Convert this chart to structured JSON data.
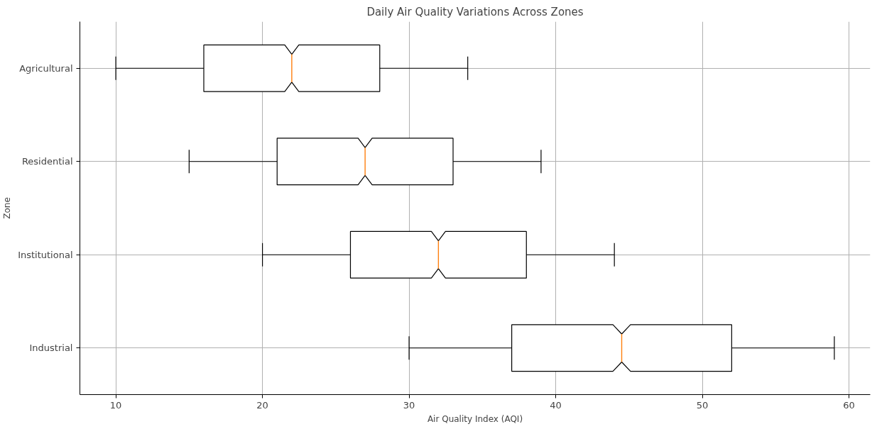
{
  "chart_data": {
    "type": "box",
    "orientation": "horizontal",
    "title": "Daily Air Quality Variations Across Zones",
    "xlabel": "Air Quality Index (AQI)",
    "ylabel": "Zone",
    "categories": [
      "Agricultural",
      "Residential",
      "Institutional",
      "Industrial"
    ],
    "boxes": [
      {
        "low": 10,
        "q1": 16,
        "median": 22,
        "q3": 28,
        "high": 34
      },
      {
        "low": 15,
        "q1": 21,
        "median": 27,
        "q3": 33,
        "high": 39
      },
      {
        "low": 20,
        "q1": 26,
        "median": 32,
        "q3": 38,
        "high": 44
      },
      {
        "low": 30,
        "q1": 37,
        "median": 44.5,
        "q3": 52,
        "high": 59
      }
    ],
    "xlim": [
      7.55,
      61.45
    ],
    "xticks": [
      10,
      20,
      30,
      40,
      50,
      60
    ],
    "grid": true
  }
}
